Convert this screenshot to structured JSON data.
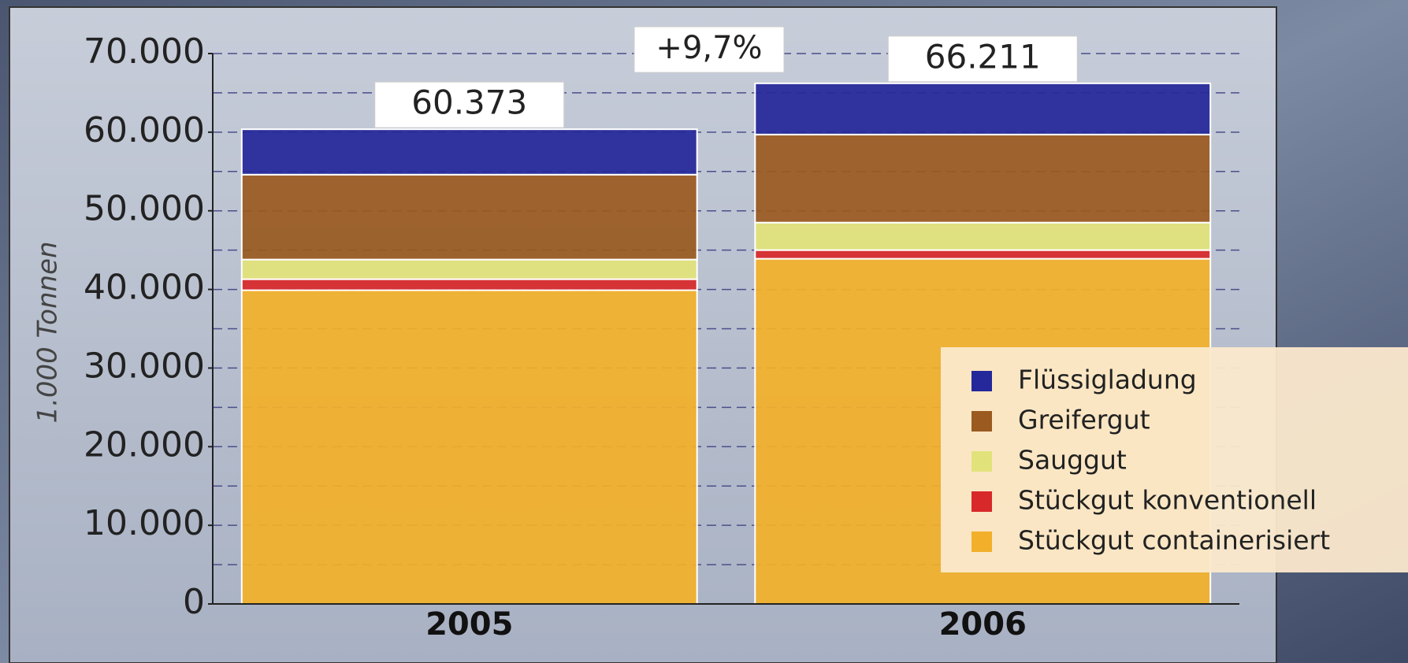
{
  "chart_data": {
    "type": "stacked_bar",
    "y_label": "1.000 Tonnen",
    "annotation": "+9,7%",
    "categories": [
      "2005",
      "2006"
    ],
    "series": [
      {
        "name": "Stückgut containerisiert",
        "color": "#f2b02a",
        "values": [
          39900,
          43900
        ]
      },
      {
        "name": "Stückgut konventionell",
        "color": "#d8282a",
        "values": [
          1400,
          1100
        ]
      },
      {
        "name": "Sauggut",
        "color": "#e2e27a",
        "values": [
          2500,
          3500
        ]
      },
      {
        "name": "Greifergut",
        "color": "#9a5a20",
        "values": [
          10800,
          11200
        ]
      },
      {
        "name": "Flüssigladung",
        "color": "#25289a",
        "values": [
          5773,
          6511
        ]
      }
    ],
    "totals": {
      "values": [
        60373,
        66211
      ],
      "value_labels": [
        "60.373",
        "66.211"
      ]
    },
    "ylim": [
      0,
      70000
    ],
    "yticks": [
      0,
      {
        "value": 10000,
        "label": "10.000"
      },
      {
        "value": 20000,
        "label": "20.000"
      },
      {
        "value": 30000,
        "label": "30.000"
      },
      {
        "value": 40000,
        "label": "40.000"
      },
      {
        "value": 50000,
        "label": "50.000"
      },
      {
        "value": 60000,
        "label": "60.000"
      },
      {
        "value": 70000,
        "label": "70.000"
      }
    ],
    "grid": true
  }
}
